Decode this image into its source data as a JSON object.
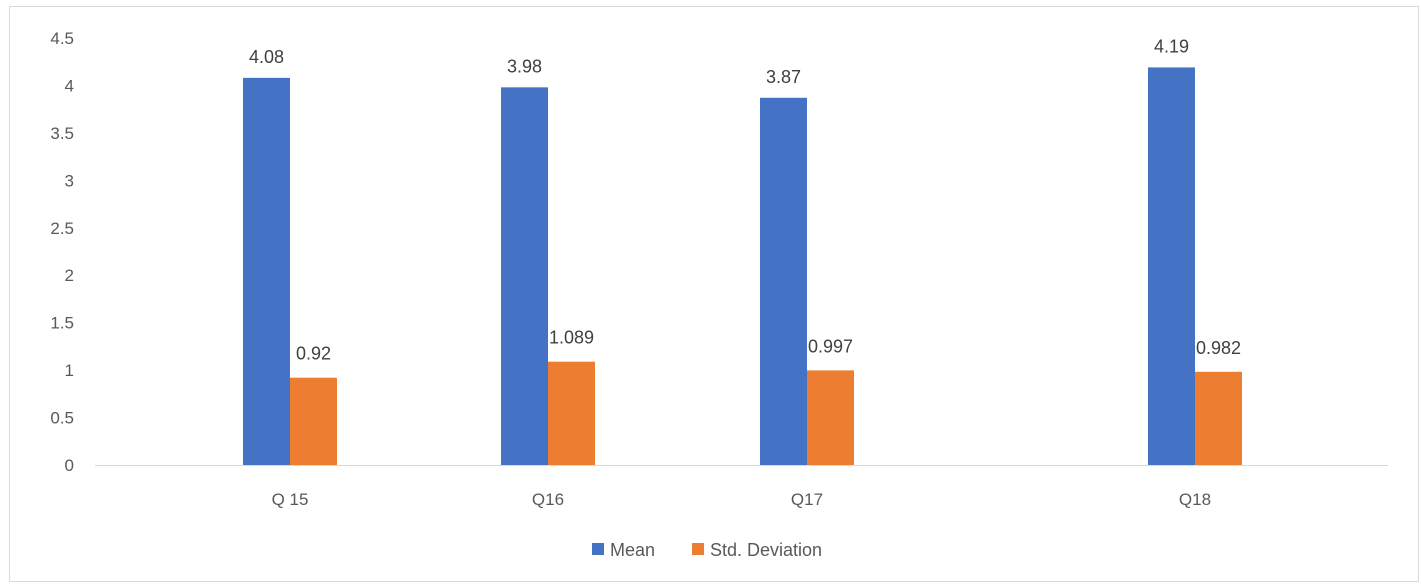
{
  "chart_data": {
    "type": "bar",
    "title": "",
    "xlabel": "",
    "ylabel": "",
    "categories": [
      "Q 15",
      "Q16",
      "Q17",
      "Q18"
    ],
    "series": [
      {
        "name": "Mean",
        "values": [
          4.08,
          3.98,
          3.87,
          4.19
        ],
        "color": "#4472c4",
        "labels": [
          "4.08",
          "3.98",
          "3.87",
          "4.19"
        ]
      },
      {
        "name": "Std. Deviation",
        "values": [
          0.92,
          1.089,
          0.997,
          0.982
        ],
        "color": "#ed7d31",
        "labels": [
          "0.92",
          "1.089",
          "0.997",
          "0.982"
        ]
      }
    ],
    "ylim": [
      0,
      4.5
    ],
    "yticks": [
      "0",
      "0.5",
      "1",
      "1.5",
      "2",
      "2.5",
      "3",
      "3.5",
      "4",
      "4.5"
    ],
    "grid": false,
    "legend_position": "bottom"
  }
}
